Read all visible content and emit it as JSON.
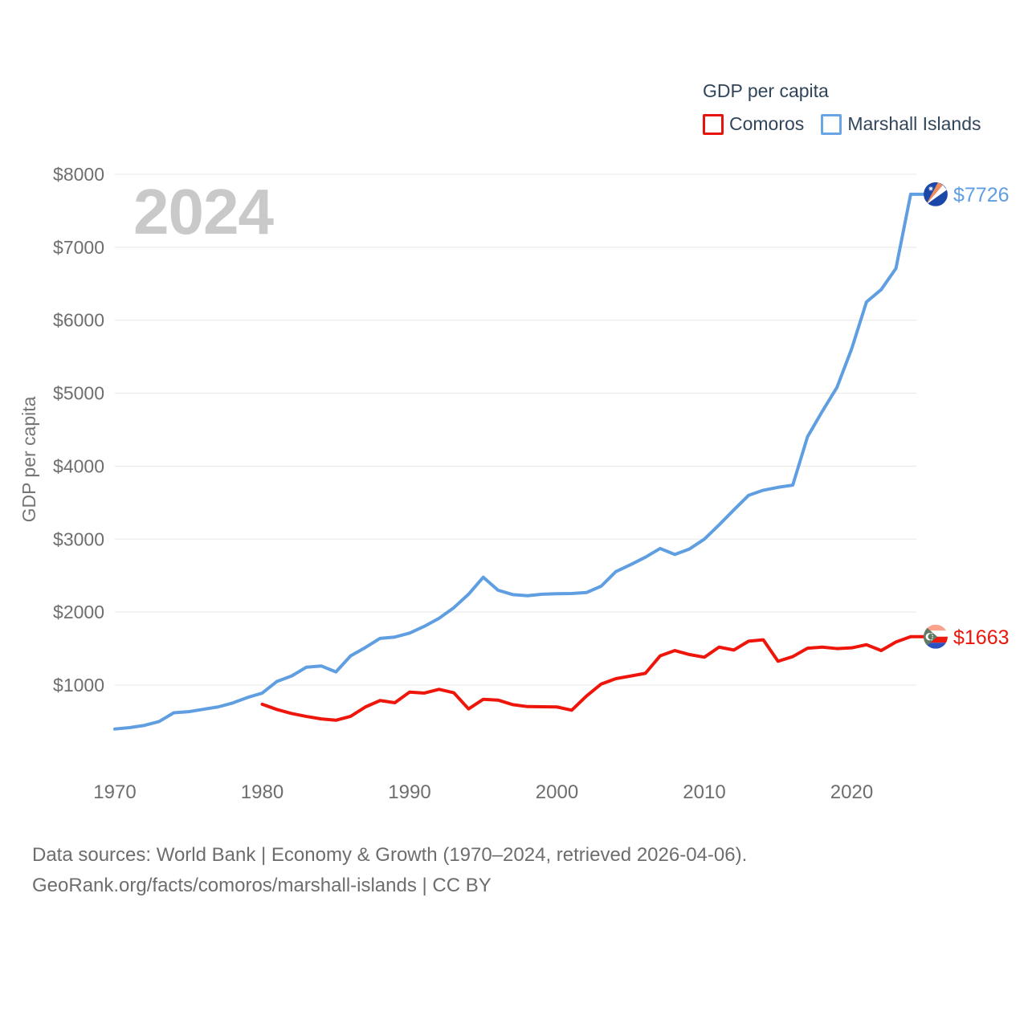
{
  "watermark": "2024",
  "legend": {
    "title": "GDP per capita",
    "items": [
      {
        "label": "Comoros",
        "color": "#e8140b"
      },
      {
        "label": "Marshall Islands",
        "color": "#6ba4e4"
      }
    ]
  },
  "chart_data": {
    "type": "line",
    "title": "GDP per capita",
    "xlabel": "",
    "ylabel": "GDP per capita",
    "x_ticks": [
      1970,
      1980,
      1990,
      2000,
      2010,
      2020
    ],
    "y_ticks": [
      1000,
      2000,
      3000,
      4000,
      5000,
      6000,
      7000,
      8000
    ],
    "y_tick_prefix": "$",
    "ylim": [
      0,
      8000
    ],
    "xlim": [
      1970,
      2024
    ],
    "grid": true,
    "legend_position": "top-right",
    "series": [
      {
        "name": "Comoros",
        "color": "#ee150b",
        "flag": "comoros",
        "end_label": "$1663",
        "x": [
          1980,
          1981,
          1982,
          1983,
          1984,
          1985,
          1986,
          1987,
          1988,
          1989,
          1990,
          1991,
          1992,
          1993,
          1994,
          1995,
          1996,
          1997,
          1998,
          1999,
          2000,
          2001,
          2002,
          2003,
          2004,
          2005,
          2006,
          2007,
          2008,
          2009,
          2010,
          2011,
          2012,
          2013,
          2014,
          2015,
          2016,
          2017,
          2018,
          2019,
          2020,
          2021,
          2022,
          2023,
          2024
        ],
        "values": [
          737,
          665,
          610,
          570,
          536,
          518,
          572,
          700,
          788,
          758,
          904,
          890,
          941,
          895,
          673,
          805,
          794,
          732,
          705,
          703,
          700,
          655,
          849,
          1014,
          1088,
          1124,
          1161,
          1400,
          1473,
          1418,
          1382,
          1520,
          1480,
          1601,
          1620,
          1326,
          1390,
          1505,
          1520,
          1500,
          1510,
          1553,
          1473,
          1590,
          1663
        ]
      },
      {
        "name": "Marshall Islands",
        "color": "#5f9ee0",
        "flag": "marshall",
        "end_label": "$7726",
        "x": [
          1970,
          1971,
          1972,
          1973,
          1974,
          1975,
          1976,
          1977,
          1978,
          1979,
          1980,
          1981,
          1982,
          1983,
          1984,
          1985,
          1986,
          1987,
          1988,
          1989,
          1990,
          1991,
          1992,
          1993,
          1994,
          1995,
          1996,
          1997,
          1998,
          1999,
          2000,
          2001,
          2002,
          2003,
          2004,
          2005,
          2006,
          2007,
          2008,
          2009,
          2010,
          2011,
          2012,
          2013,
          2014,
          2015,
          2016,
          2017,
          2018,
          2019,
          2020,
          2021,
          2022,
          2023,
          2024
        ],
        "values": [
          398,
          417,
          447,
          500,
          620,
          635,
          668,
          700,
          755,
          830,
          890,
          1050,
          1125,
          1245,
          1262,
          1180,
          1400,
          1515,
          1640,
          1658,
          1712,
          1805,
          1915,
          2060,
          2245,
          2478,
          2300,
          2240,
          2225,
          2245,
          2252,
          2255,
          2268,
          2355,
          2556,
          2650,
          2752,
          2872,
          2790,
          2866,
          3000,
          3195,
          3400,
          3600,
          3670,
          3710,
          3740,
          4403,
          4750,
          5080,
          5610,
          6250,
          6420,
          6710,
          7726
        ]
      }
    ]
  },
  "footer": {
    "line1": "Data sources: World Bank | Economy & Growth (1970–2024, retrieved 2026-04-06).",
    "line2": "GeoRank.org/facts/comoros/marshall-islands | CC BY"
  }
}
